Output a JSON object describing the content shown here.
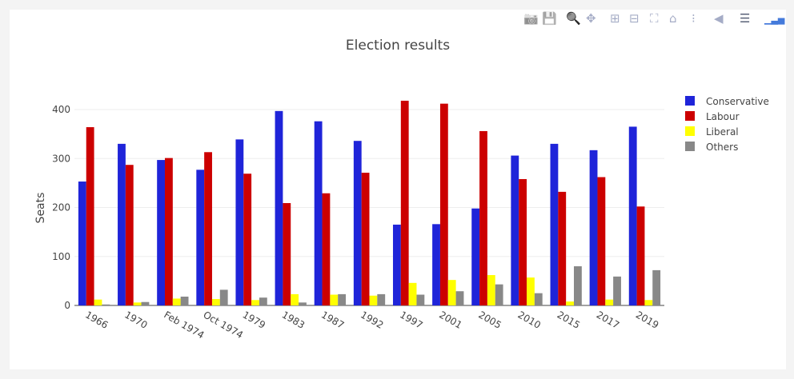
{
  "toolbar": {
    "icons": [
      "camera-icon",
      "save-icon",
      "zoom-icon",
      "pan-icon",
      "zoom-in-icon",
      "zoom-out-icon",
      "autoscale-icon",
      "home-icon",
      "spike-lines-icon",
      "hover-closest-icon",
      "hover-compare-icon",
      "plotly-logo-icon"
    ]
  },
  "chart_data": {
    "type": "bar",
    "title": "Election results",
    "xlabel": "",
    "ylabel": "Seats",
    "ylim": [
      0,
      430
    ],
    "yticks": [
      0,
      100,
      200,
      300,
      400
    ],
    "grid": true,
    "legend_placement": "right",
    "categories": [
      "1966",
      "1970",
      "Feb 1974",
      "Oct 1974",
      "1979",
      "1983",
      "1987",
      "1992",
      "1997",
      "2001",
      "2005",
      "2010",
      "2015",
      "2017",
      "2019"
    ],
    "series": [
      {
        "name": "Conservative",
        "color": "#1f24d9",
        "values": [
          253,
          330,
          297,
          277,
          339,
          397,
          376,
          336,
          165,
          166,
          198,
          306,
          330,
          317,
          365
        ]
      },
      {
        "name": "Labour",
        "color": "#cc0000",
        "values": [
          364,
          287,
          301,
          313,
          269,
          209,
          229,
          271,
          418,
          412,
          356,
          258,
          232,
          262,
          202
        ]
      },
      {
        "name": "Liberal",
        "color": "#ffff00",
        "values": [
          12,
          6,
          14,
          13,
          11,
          23,
          22,
          20,
          46,
          52,
          62,
          57,
          8,
          12,
          11
        ]
      },
      {
        "name": "Others",
        "color": "#888888",
        "values": [
          2,
          7,
          18,
          32,
          16,
          6,
          23,
          23,
          22,
          29,
          43,
          25,
          80,
          59,
          72
        ]
      }
    ]
  }
}
